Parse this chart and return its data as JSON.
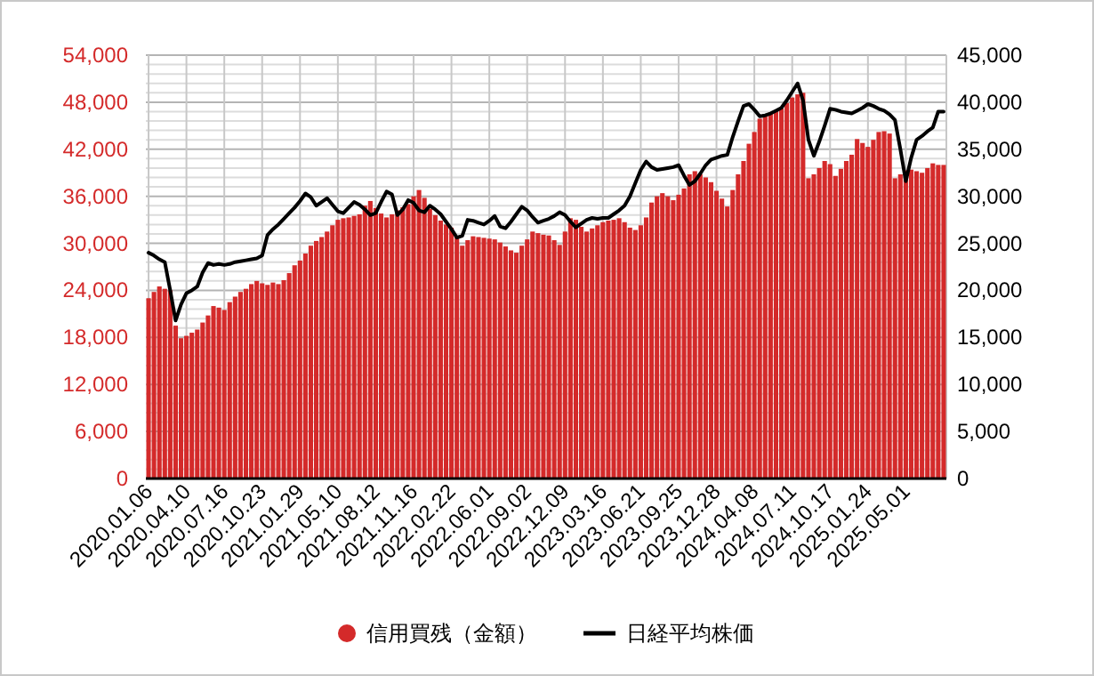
{
  "chart_data": {
    "type": "bar",
    "categories": [
      "2020.01.06",
      null,
      null,
      null,
      null,
      null,
      null,
      "2020.04.10",
      null,
      null,
      null,
      null,
      null,
      null,
      "2020.07.16",
      null,
      null,
      null,
      null,
      null,
      null,
      "2020.10.23",
      null,
      null,
      null,
      null,
      null,
      null,
      "2021.01.29",
      null,
      null,
      null,
      null,
      null,
      null,
      "2021.05.10",
      null,
      null,
      null,
      null,
      null,
      null,
      "2021.08.12",
      null,
      null,
      null,
      null,
      null,
      null,
      "2021.11.16",
      null,
      null,
      null,
      null,
      null,
      null,
      "2022.02.22",
      null,
      null,
      null,
      null,
      null,
      null,
      "2022.06.01",
      null,
      null,
      null,
      null,
      null,
      null,
      "2022.09.02",
      null,
      null,
      null,
      null,
      null,
      null,
      "2022.12.09",
      null,
      null,
      null,
      null,
      null,
      null,
      "2023.03.16",
      null,
      null,
      null,
      null,
      null,
      null,
      "2023.06.21",
      null,
      null,
      null,
      null,
      null,
      null,
      "2023.09.25",
      null,
      null,
      null,
      null,
      null,
      null,
      "2023.12.28",
      null,
      null,
      null,
      null,
      null,
      null,
      "2024.04.08",
      null,
      null,
      null,
      null,
      null,
      null,
      "2024.07.11",
      null,
      null,
      null,
      null,
      null,
      null,
      "2024.10.17",
      null,
      null,
      null,
      null,
      null,
      null,
      "2025.01.24",
      null,
      null,
      null,
      null,
      null,
      null,
      "2025.05.01",
      null,
      null,
      null,
      null,
      null,
      null,
      null
    ],
    "series": [
      {
        "name": "信用買残（金額）",
        "color": "#d42a2a",
        "values": [
          23000,
          23800,
          24500,
          24200,
          24000,
          19500,
          17900,
          18200,
          18600,
          19000,
          19900,
          20800,
          22000,
          21800,
          21500,
          22500,
          23200,
          23800,
          24200,
          24800,
          25200,
          24900,
          24700,
          25000,
          24800,
          25300,
          26200,
          27200,
          27800,
          28700,
          29700,
          30300,
          30800,
          31500,
          32300,
          33000,
          33200,
          33300,
          33500,
          33700,
          34800,
          35400,
          34500,
          33800,
          33300,
          33700,
          34200,
          34600,
          35000,
          36000,
          36800,
          35800,
          34400,
          33600,
          32900,
          32400,
          32000,
          30800,
          29700,
          30400,
          30900,
          30800,
          30700,
          30600,
          30500,
          30100,
          29600,
          29100,
          28800,
          29700,
          30500,
          31500,
          31300,
          31100,
          31000,
          30400,
          29800,
          31500,
          33200,
          33000,
          32100,
          31500,
          31900,
          32300,
          32700,
          32900,
          33000,
          33200,
          32700,
          32000,
          31700,
          32300,
          33300,
          35200,
          36000,
          36400,
          36000,
          35500,
          36200,
          37000,
          38800,
          39200,
          38800,
          38400,
          37800,
          36700,
          35700,
          34700,
          36800,
          38800,
          40500,
          42700,
          44200,
          45900,
          46500,
          46700,
          46900,
          47200,
          47900,
          48600,
          49000,
          49200,
          38300,
          38800,
          39600,
          40500,
          40100,
          38600,
          39500,
          40500,
          41300,
          43300,
          42800,
          42300,
          43200,
          44200,
          44300,
          44000,
          38300,
          38800,
          39300,
          39400,
          39200,
          39000,
          39600,
          40200,
          40000,
          40000
        ]
      },
      {
        "name": "日経平均株価",
        "type": "line",
        "axis": "y2",
        "color": "#000000",
        "values": [
          24000,
          23700,
          23300,
          23000,
          20000,
          16800,
          18500,
          19700,
          20000,
          20400,
          21900,
          22900,
          22700,
          22800,
          22700,
          22800,
          23000,
          23100,
          23200,
          23300,
          23400,
          23700,
          25900,
          26500,
          27000,
          27600,
          28200,
          28800,
          29500,
          30300,
          29900,
          29000,
          29400,
          29800,
          29100,
          28400,
          28200,
          28800,
          29400,
          29100,
          28600,
          28000,
          28200,
          29400,
          30500,
          30200,
          28000,
          28600,
          29600,
          29300,
          28500,
          28300,
          29000,
          28600,
          28100,
          27300,
          26500,
          25600,
          25800,
          27500,
          27400,
          27200,
          27000,
          27400,
          27900,
          26800,
          26600,
          27300,
          28100,
          28900,
          28500,
          27800,
          27200,
          27400,
          27600,
          27900,
          28300,
          28000,
          27300,
          26700,
          27100,
          27500,
          27700,
          27600,
          27700,
          27700,
          28100,
          28500,
          29000,
          30000,
          31400,
          32800,
          33700,
          33100,
          32800,
          32900,
          33000,
          33100,
          33300,
          32200,
          31200,
          31600,
          32400,
          33300,
          33900,
          34100,
          34300,
          34400,
          36300,
          38000,
          39600,
          39800,
          39200,
          38500,
          38600,
          38800,
          39100,
          39400,
          40200,
          41100,
          42000,
          40200,
          36000,
          34300,
          35800,
          37500,
          39300,
          39200,
          39000,
          38900,
          38800,
          39100,
          39400,
          39800,
          39600,
          39300,
          39100,
          38700,
          38100,
          35000,
          31600,
          34100,
          36000,
          36400,
          36900,
          37300,
          39000,
          39000
        ]
      }
    ],
    "ylim": [
      0,
      54000
    ],
    "yticks": [
      0,
      {
        "value": 6000,
        "label": "6,000"
      },
      {
        "value": 12000,
        "label": "12,000"
      },
      {
        "value": 18000,
        "label": "18,000"
      },
      {
        "value": 24000,
        "label": "24,000"
      },
      {
        "value": 30000,
        "label": "30,000"
      },
      {
        "value": 36000,
        "label": "36,000"
      },
      {
        "value": 42000,
        "label": "42,000"
      },
      {
        "value": 48000,
        "label": "48,000"
      },
      {
        "value": 54000,
        "label": "54,000"
      }
    ],
    "y2lim": [
      0,
      45000
    ],
    "y2ticks": [
      0,
      {
        "value": 5000,
        "label": "5,000"
      },
      {
        "value": 10000,
        "label": "10,000"
      },
      {
        "value": 15000,
        "label": "15,000"
      },
      {
        "value": 20000,
        "label": "20,000"
      },
      {
        "value": 25000,
        "label": "25,000"
      },
      {
        "value": 30000,
        "label": "30,000"
      },
      {
        "value": 35000,
        "label": "35,000"
      },
      {
        "value": 40000,
        "label": "40,000"
      },
      {
        "value": 45000,
        "label": "45,000"
      }
    ],
    "grid": true,
    "legend": "bottom",
    "marker": "none"
  }
}
